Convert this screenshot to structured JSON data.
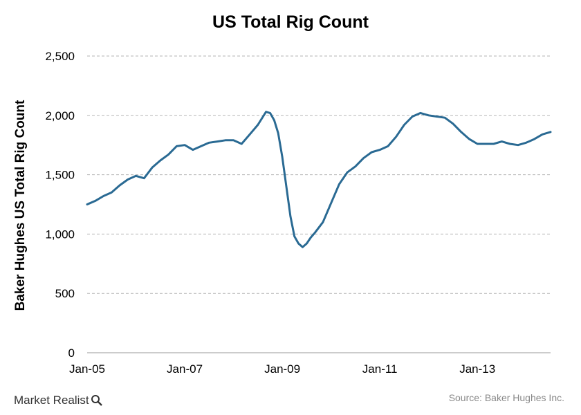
{
  "chart_data": {
    "type": "line",
    "title": "US Total Rig Count",
    "xlabel": "",
    "ylabel": "Baker Hughes US Total Rig Count",
    "ylim": [
      0,
      2500
    ],
    "yticks": [
      0,
      500,
      1000,
      1500,
      2000,
      2500
    ],
    "ytick_labels": [
      "0",
      "500",
      "1,000",
      "1,500",
      "2,000",
      "2,500"
    ],
    "xlim": [
      "2005-01",
      "2014-07"
    ],
    "xticks": [
      "2005-01",
      "2007-01",
      "2009-01",
      "2011-01",
      "2013-01"
    ],
    "xtick_labels": [
      "Jan-05",
      "Jan-07",
      "Jan-09",
      "Jan-11",
      "Jan-13"
    ],
    "grid": "horizontal dashed",
    "color": "#2a6a93",
    "series": [
      {
        "points": [
          [
            "2005-01",
            1250
          ],
          [
            "2005-03",
            1280
          ],
          [
            "2005-05",
            1320
          ],
          [
            "2005-07",
            1350
          ],
          [
            "2005-09",
            1410
          ],
          [
            "2005-11",
            1460
          ],
          [
            "2006-01",
            1490
          ],
          [
            "2006-03",
            1470
          ],
          [
            "2006-05",
            1560
          ],
          [
            "2006-07",
            1620
          ],
          [
            "2006-09",
            1670
          ],
          [
            "2006-11",
            1740
          ],
          [
            "2007-01",
            1750
          ],
          [
            "2007-03",
            1710
          ],
          [
            "2007-05",
            1740
          ],
          [
            "2007-07",
            1770
          ],
          [
            "2007-09",
            1780
          ],
          [
            "2007-11",
            1790
          ],
          [
            "2008-01",
            1790
          ],
          [
            "2008-03",
            1760
          ],
          [
            "2008-05",
            1840
          ],
          [
            "2008-07",
            1920
          ],
          [
            "2008-09",
            2030
          ],
          [
            "2008-10",
            2020
          ],
          [
            "2008-11",
            1960
          ],
          [
            "2008-12",
            1850
          ],
          [
            "2009-01",
            1650
          ],
          [
            "2009-02",
            1400
          ],
          [
            "2009-03",
            1150
          ],
          [
            "2009-04",
            980
          ],
          [
            "2009-05",
            920
          ],
          [
            "2009-06",
            890
          ],
          [
            "2009-07",
            920
          ],
          [
            "2009-08",
            970
          ],
          [
            "2009-09",
            1010
          ],
          [
            "2009-11",
            1100
          ],
          [
            "2010-01",
            1260
          ],
          [
            "2010-03",
            1420
          ],
          [
            "2010-05",
            1520
          ],
          [
            "2010-07",
            1570
          ],
          [
            "2010-09",
            1640
          ],
          [
            "2010-11",
            1690
          ],
          [
            "2011-01",
            1710
          ],
          [
            "2011-03",
            1740
          ],
          [
            "2011-05",
            1820
          ],
          [
            "2011-07",
            1920
          ],
          [
            "2011-09",
            1990
          ],
          [
            "2011-11",
            2020
          ],
          [
            "2012-01",
            2000
          ],
          [
            "2012-03",
            1990
          ],
          [
            "2012-05",
            1980
          ],
          [
            "2012-07",
            1930
          ],
          [
            "2012-09",
            1860
          ],
          [
            "2012-11",
            1800
          ],
          [
            "2013-01",
            1760
          ],
          [
            "2013-03",
            1760
          ],
          [
            "2013-05",
            1760
          ],
          [
            "2013-07",
            1780
          ],
          [
            "2013-09",
            1760
          ],
          [
            "2013-11",
            1750
          ],
          [
            "2014-01",
            1770
          ],
          [
            "2014-03",
            1800
          ],
          [
            "2014-05",
            1840
          ],
          [
            "2014-07",
            1860
          ]
        ]
      }
    ]
  },
  "footer": {
    "brand": "Market Realist",
    "source": "Source: Baker Hughes Inc."
  }
}
